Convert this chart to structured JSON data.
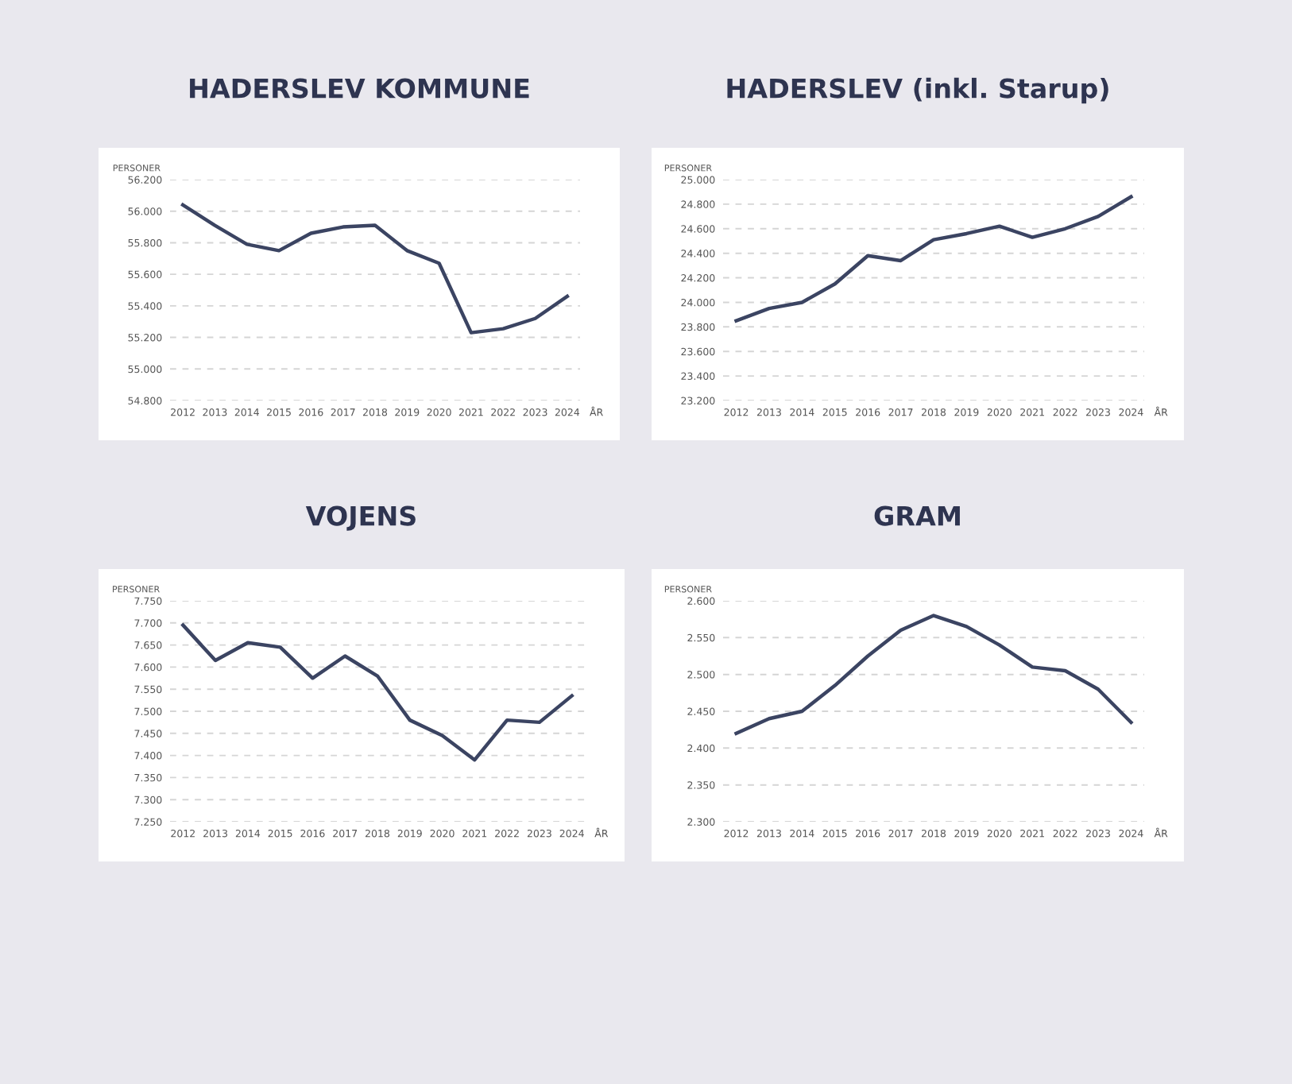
{
  "chart_data": [
    {
      "type": "line",
      "title": "HADERSLEV KOMMUNE",
      "xlabel": "ÅR",
      "ylabel": "PERSONER",
      "categories": [
        "2012",
        "2013",
        "2014",
        "2015",
        "2016",
        "2017",
        "2018",
        "2019",
        "2020",
        "2021",
        "2022",
        "2023",
        "2024"
      ],
      "series": [
        {
          "color": "#3b4462",
          "values": [
            56040,
            55910,
            55790,
            55750,
            55860,
            55900,
            55910,
            55750,
            55670,
            55230,
            55255,
            55320,
            55460
          ]
        }
      ],
      "ylim": [
        54800,
        56200
      ],
      "yticks": [
        {
          "value": 54800,
          "label": "54.800"
        },
        {
          "value": 55000,
          "label": "55.000"
        },
        {
          "value": 55200,
          "label": "55.200"
        },
        {
          "value": 55400,
          "label": "55.400"
        },
        {
          "value": 55600,
          "label": "55.600"
        },
        {
          "value": 55800,
          "label": "55.800"
        },
        {
          "value": 56000,
          "label": "56.000"
        },
        {
          "value": 56200,
          "label": "56.200"
        }
      ],
      "grid": "y",
      "legend": false,
      "marker": "none",
      "line_style": "solid"
    },
    {
      "type": "line",
      "title": "HADERSLEV (inkl. Starup)",
      "xlabel": "ÅR",
      "ylabel": "PERSONER",
      "categories": [
        "2012",
        "2013",
        "2014",
        "2015",
        "2016",
        "2017",
        "2018",
        "2019",
        "2020",
        "2021",
        "2022",
        "2023",
        "2024"
      ],
      "series": [
        {
          "color": "#3b4462",
          "values": [
            23850,
            23950,
            24000,
            24150,
            24380,
            24340,
            24510,
            24560,
            24620,
            24530,
            24600,
            24700,
            24860
          ]
        }
      ],
      "ylim": [
        23200,
        25000
      ],
      "yticks": [
        {
          "value": 23200,
          "label": "23.200"
        },
        {
          "value": 23400,
          "label": "23.400"
        },
        {
          "value": 23600,
          "label": "23.600"
        },
        {
          "value": 23800,
          "label": "23.800"
        },
        {
          "value": 24000,
          "label": "24.000"
        },
        {
          "value": 24200,
          "label": "24.200"
        },
        {
          "value": 24400,
          "label": "24.400"
        },
        {
          "value": 24600,
          "label": "24.600"
        },
        {
          "value": 24800,
          "label": "24.800"
        },
        {
          "value": 25000,
          "label": "25.000"
        }
      ],
      "grid": "y",
      "legend": false,
      "marker": "none",
      "line_style": "solid"
    },
    {
      "type": "line",
      "title": "VOJENS",
      "xlabel": "ÅR",
      "ylabel": "PERSONER",
      "categories": [
        "2012",
        "2013",
        "2014",
        "2015",
        "2016",
        "2017",
        "2018",
        "2019",
        "2020",
        "2021",
        "2022",
        "2023",
        "2024"
      ],
      "series": [
        {
          "color": "#3b4462",
          "values": [
            7695,
            7615,
            7655,
            7645,
            7575,
            7625,
            7580,
            7480,
            7445,
            7390,
            7480,
            7475,
            7535
          ]
        }
      ],
      "ylim": [
        7250,
        7750
      ],
      "yticks": [
        {
          "value": 7250,
          "label": "7.250"
        },
        {
          "value": 7300,
          "label": "7.300"
        },
        {
          "value": 7350,
          "label": "7.350"
        },
        {
          "value": 7400,
          "label": "7.400"
        },
        {
          "value": 7450,
          "label": "7.450"
        },
        {
          "value": 7500,
          "label": "7.500"
        },
        {
          "value": 7550,
          "label": "7.550"
        },
        {
          "value": 7600,
          "label": "7.600"
        },
        {
          "value": 7650,
          "label": "7.650"
        },
        {
          "value": 7700,
          "label": "7.700"
        },
        {
          "value": 7750,
          "label": "7.750"
        }
      ],
      "grid": "y",
      "legend": false,
      "marker": "none",
      "line_style": "solid"
    },
    {
      "type": "line",
      "title": "GRAM",
      "xlabel": "ÅR",
      "ylabel": "PERSONER",
      "categories": [
        "2012",
        "2013",
        "2014",
        "2015",
        "2016",
        "2017",
        "2018",
        "2019",
        "2020",
        "2021",
        "2022",
        "2023",
        "2024"
      ],
      "series": [
        {
          "color": "#3b4462",
          "values": [
            2420,
            2440,
            2450,
            2485,
            2525,
            2560,
            2580,
            2565,
            2540,
            2510,
            2505,
            2480,
            2435
          ]
        }
      ],
      "ylim": [
        2300,
        2600
      ],
      "yticks": [
        {
          "value": 2300,
          "label": "2.300"
        },
        {
          "value": 2350,
          "label": "2.350"
        },
        {
          "value": 2400,
          "label": "2.400"
        },
        {
          "value": 2450,
          "label": "2.450"
        },
        {
          "value": 2500,
          "label": "2.500"
        },
        {
          "value": 2550,
          "label": "2.550"
        },
        {
          "value": 2600,
          "label": "2.600"
        }
      ],
      "grid": "y",
      "legend": false,
      "marker": "none",
      "line_style": "solid"
    }
  ]
}
